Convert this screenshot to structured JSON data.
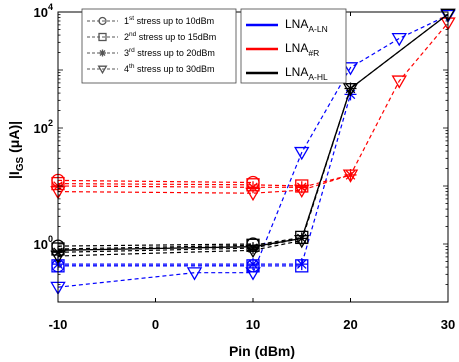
{
  "chart_data": {
    "type": "line",
    "xlabel": "Pin (dBm)",
    "ylabel_main": "|I",
    "ylabel_sub": "GS",
    "ylabel_rest": " (μA)|",
    "xlim": [
      -10,
      30
    ],
    "xticks": [
      -10,
      0,
      10,
      20,
      30
    ],
    "xtick_labels": [
      "-10",
      "0",
      "10",
      "20",
      "30"
    ],
    "ylim": [
      0.1,
      10000
    ],
    "yscale": "log",
    "yticks": [
      1,
      100,
      10000
    ],
    "ytick_labels": [
      {
        "base": "10",
        "exp": "0"
      },
      {
        "base": "10",
        "exp": "2"
      },
      {
        "base": "10",
        "exp": "4"
      }
    ],
    "grid": false,
    "stress_legend": [
      {
        "pre": "1",
        "sup": "st",
        "post": " stress up to 10dBm",
        "marker": "circle"
      },
      {
        "pre": "2",
        "sup": "nd",
        "post": " stress up to 15dBm",
        "marker": "square"
      },
      {
        "pre": "3",
        "sup": "rd",
        "post": " stress up to 20dBm",
        "marker": "asterisk"
      },
      {
        "pre": "4",
        "sup": "th",
        "post": " stress up to 30dBm",
        "marker": "triangle-down"
      }
    ],
    "device_legend": [
      {
        "main": "LNA",
        "sub": "A-LN",
        "color": "#0000ff"
      },
      {
        "main": "LNA",
        "sub": "#R",
        "color": "#ff0000"
      },
      {
        "main": "LNA",
        "sub": "A-HL",
        "color": "#000000"
      }
    ],
    "series": [
      {
        "device": "LNA A-LN",
        "stress": 1,
        "marker": "circle",
        "color": "#0000ff",
        "x": [
          -10,
          10
        ],
        "y": [
          0.42,
          0.42
        ]
      },
      {
        "device": "LNA A-LN",
        "stress": 2,
        "marker": "square",
        "color": "#0000ff",
        "x": [
          -10,
          10,
          15
        ],
        "y": [
          0.42,
          0.42,
          0.42
        ]
      },
      {
        "device": "LNA A-LN",
        "stress": 3,
        "marker": "asterisk",
        "color": "#0000ff",
        "x": [
          -10,
          10,
          15,
          20
        ],
        "y": [
          0.45,
          0.45,
          0.45,
          380
        ]
      },
      {
        "device": "LNA A-LN",
        "stress": 4,
        "marker": "triangle-down",
        "color": "#0000ff",
        "x": [
          -10,
          4,
          10,
          15,
          20,
          25,
          30
        ],
        "y": [
          0.18,
          0.32,
          0.32,
          38,
          1100,
          3500,
          8800
        ]
      },
      {
        "device": "LNA #R",
        "stress": 1,
        "marker": "circle",
        "color": "#ff0000",
        "x": [
          -10,
          10
        ],
        "y": [
          12.5,
          11.5
        ]
      },
      {
        "device": "LNA #R",
        "stress": 2,
        "marker": "square",
        "color": "#ff0000",
        "x": [
          -10,
          10,
          15
        ],
        "y": [
          11.0,
          10.5,
          10.0
        ]
      },
      {
        "device": "LNA #R",
        "stress": 3,
        "marker": "asterisk",
        "color": "#ff0000",
        "x": [
          -10,
          10,
          15,
          20
        ],
        "y": [
          10.0,
          9.5,
          9.5,
          15.5
        ]
      },
      {
        "device": "LNA #R",
        "stress": 4,
        "marker": "triangle-down",
        "color": "#ff0000",
        "x": [
          -10,
          10,
          15,
          20,
          25,
          30
        ],
        "y": [
          8.0,
          7.5,
          8.5,
          15.5,
          650,
          6500
        ]
      },
      {
        "device": "LNA A-HL",
        "stress": 1,
        "marker": "circle",
        "color": "#000000",
        "x": [
          -10,
          10
        ],
        "y": [
          0.92,
          1.0
        ]
      },
      {
        "device": "LNA A-HL",
        "stress": 2,
        "marker": "square",
        "color": "#000000",
        "x": [
          -10,
          10,
          15
        ],
        "y": [
          0.82,
          0.95,
          1.3
        ]
      },
      {
        "device": "LNA A-HL",
        "stress": 3,
        "marker": "asterisk",
        "color": "#000000",
        "x": [
          -10,
          10,
          15,
          20
        ],
        "y": [
          0.72,
          0.85,
          1.25,
          480
        ]
      },
      {
        "device": "LNA A-HL",
        "stress": 4,
        "marker": "triangle-down",
        "color": "#000000",
        "x": [
          -10,
          10,
          15,
          20,
          30
        ],
        "y": [
          0.62,
          0.78,
          1.15,
          480,
          9200
        ]
      },
      {
        "device": "LNA A-HL",
        "stress": 0,
        "marker": "none",
        "color": "#000000",
        "solid": true,
        "x": [
          -10,
          10,
          15,
          20,
          30
        ],
        "y": [
          0.78,
          0.9,
          1.25,
          480,
          9200
        ]
      }
    ]
  }
}
